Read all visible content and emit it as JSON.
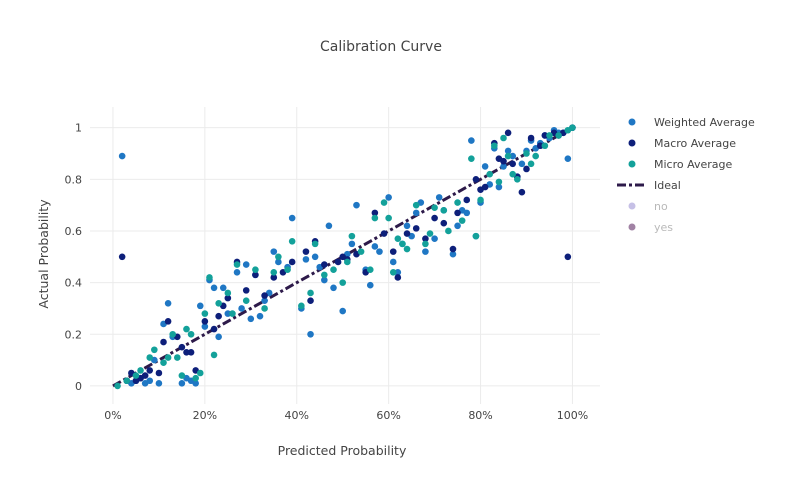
{
  "chart_data": {
    "type": "scatter",
    "title": "Calibration Curve",
    "xlabel": "Predicted Probability",
    "ylabel": "Actual Probability",
    "xlim": [
      -0.05,
      1.06
    ],
    "ylim": [
      -0.07,
      1.08
    ],
    "x_ticks": [
      0,
      0.2,
      0.4,
      0.6,
      0.8,
      1.0
    ],
    "x_tick_labels": [
      "0%",
      "20%",
      "40%",
      "60%",
      "80%",
      "100%"
    ],
    "y_ticks": [
      0,
      0.2,
      0.4,
      0.6,
      0.8,
      1.0
    ],
    "y_tick_labels": [
      "0",
      "0.2",
      "0.4",
      "0.6",
      "0.8",
      "1"
    ],
    "grid": true,
    "legend_position": "right",
    "series": [
      {
        "name": "Weighted Average",
        "mode": "markers",
        "color": "#1f77c4",
        "points": [
          [
            0.02,
            0.89
          ],
          [
            0.04,
            0.01
          ],
          [
            0.05,
            0.02
          ],
          [
            0.06,
            0.03
          ],
          [
            0.07,
            0.01
          ],
          [
            0.08,
            0.02
          ],
          [
            0.09,
            0.1
          ],
          [
            0.1,
            0.01
          ],
          [
            0.11,
            0.24
          ],
          [
            0.12,
            0.32
          ],
          [
            0.13,
            0.19
          ],
          [
            0.15,
            0.01
          ],
          [
            0.16,
            0.03
          ],
          [
            0.17,
            0.02
          ],
          [
            0.18,
            0.01
          ],
          [
            0.19,
            0.31
          ],
          [
            0.2,
            0.23
          ],
          [
            0.21,
            0.41
          ],
          [
            0.22,
            0.38
          ],
          [
            0.23,
            0.19
          ],
          [
            0.24,
            0.38
          ],
          [
            0.25,
            0.28
          ],
          [
            0.27,
            0.44
          ],
          [
            0.28,
            0.3
          ],
          [
            0.29,
            0.47
          ],
          [
            0.3,
            0.26
          ],
          [
            0.31,
            0.43
          ],
          [
            0.32,
            0.27
          ],
          [
            0.33,
            0.33
          ],
          [
            0.34,
            0.36
          ],
          [
            0.35,
            0.52
          ],
          [
            0.36,
            0.48
          ],
          [
            0.38,
            0.46
          ],
          [
            0.39,
            0.65
          ],
          [
            0.41,
            0.3
          ],
          [
            0.42,
            0.49
          ],
          [
            0.43,
            0.2
          ],
          [
            0.44,
            0.5
          ],
          [
            0.45,
            0.46
          ],
          [
            0.46,
            0.41
          ],
          [
            0.47,
            0.62
          ],
          [
            0.48,
            0.38
          ],
          [
            0.5,
            0.29
          ],
          [
            0.51,
            0.51
          ],
          [
            0.52,
            0.55
          ],
          [
            0.53,
            0.7
          ],
          [
            0.55,
            0.45
          ],
          [
            0.56,
            0.39
          ],
          [
            0.57,
            0.54
          ],
          [
            0.58,
            0.52
          ],
          [
            0.6,
            0.73
          ],
          [
            0.61,
            0.48
          ],
          [
            0.62,
            0.44
          ],
          [
            0.63,
            0.55
          ],
          [
            0.64,
            0.62
          ],
          [
            0.65,
            0.58
          ],
          [
            0.66,
            0.67
          ],
          [
            0.67,
            0.71
          ],
          [
            0.68,
            0.52
          ],
          [
            0.7,
            0.57
          ],
          [
            0.71,
            0.73
          ],
          [
            0.72,
            0.68
          ],
          [
            0.74,
            0.51
          ],
          [
            0.75,
            0.62
          ],
          [
            0.76,
            0.68
          ],
          [
            0.77,
            0.67
          ],
          [
            0.78,
            0.95
          ],
          [
            0.79,
            0.58
          ],
          [
            0.8,
            0.71
          ],
          [
            0.81,
            0.85
          ],
          [
            0.82,
            0.78
          ],
          [
            0.83,
            0.92
          ],
          [
            0.84,
            0.77
          ],
          [
            0.85,
            0.85
          ],
          [
            0.86,
            0.91
          ],
          [
            0.87,
            0.89
          ],
          [
            0.88,
            0.81
          ],
          [
            0.89,
            0.86
          ],
          [
            0.9,
            0.91
          ],
          [
            0.91,
            0.95
          ],
          [
            0.92,
            0.92
          ],
          [
            0.93,
            0.94
          ],
          [
            0.94,
            0.97
          ],
          [
            0.95,
            0.96
          ],
          [
            0.96,
            0.99
          ],
          [
            0.97,
            0.98
          ],
          [
            0.98,
            0.98
          ],
          [
            0.99,
            0.88
          ],
          [
            1.0,
            1.0
          ]
        ]
      },
      {
        "name": "Macro Average",
        "mode": "markers",
        "color": "#0d1f7a",
        "points": [
          [
            0.02,
            0.5
          ],
          [
            0.03,
            0.02
          ],
          [
            0.04,
            0.05
          ],
          [
            0.05,
            0.02
          ],
          [
            0.06,
            0.03
          ],
          [
            0.07,
            0.04
          ],
          [
            0.08,
            0.06
          ],
          [
            0.1,
            0.05
          ],
          [
            0.11,
            0.17
          ],
          [
            0.12,
            0.25
          ],
          [
            0.14,
            0.19
          ],
          [
            0.15,
            0.15
          ],
          [
            0.16,
            0.13
          ],
          [
            0.17,
            0.13
          ],
          [
            0.18,
            0.06
          ],
          [
            0.2,
            0.25
          ],
          [
            0.22,
            0.22
          ],
          [
            0.23,
            0.27
          ],
          [
            0.24,
            0.31
          ],
          [
            0.25,
            0.34
          ],
          [
            0.27,
            0.48
          ],
          [
            0.29,
            0.37
          ],
          [
            0.31,
            0.43
          ],
          [
            0.33,
            0.35
          ],
          [
            0.35,
            0.42
          ],
          [
            0.37,
            0.44
          ],
          [
            0.39,
            0.48
          ],
          [
            0.42,
            0.52
          ],
          [
            0.43,
            0.33
          ],
          [
            0.44,
            0.56
          ],
          [
            0.46,
            0.47
          ],
          [
            0.49,
            0.48
          ],
          [
            0.5,
            0.5
          ],
          [
            0.51,
            0.49
          ],
          [
            0.53,
            0.51
          ],
          [
            0.55,
            0.44
          ],
          [
            0.57,
            0.67
          ],
          [
            0.59,
            0.59
          ],
          [
            0.61,
            0.52
          ],
          [
            0.62,
            0.42
          ],
          [
            0.64,
            0.59
          ],
          [
            0.66,
            0.61
          ],
          [
            0.68,
            0.57
          ],
          [
            0.7,
            0.65
          ],
          [
            0.72,
            0.63
          ],
          [
            0.74,
            0.53
          ],
          [
            0.75,
            0.67
          ],
          [
            0.77,
            0.72
          ],
          [
            0.79,
            0.8
          ],
          [
            0.8,
            0.76
          ],
          [
            0.81,
            0.77
          ],
          [
            0.83,
            0.94
          ],
          [
            0.84,
            0.88
          ],
          [
            0.85,
            0.87
          ],
          [
            0.86,
            0.98
          ],
          [
            0.87,
            0.86
          ],
          [
            0.88,
            0.81
          ],
          [
            0.89,
            0.75
          ],
          [
            0.9,
            0.84
          ],
          [
            0.91,
            0.96
          ],
          [
            0.93,
            0.93
          ],
          [
            0.94,
            0.97
          ],
          [
            0.96,
            0.98
          ],
          [
            0.97,
            0.97
          ],
          [
            0.98,
            0.98
          ],
          [
            0.99,
            0.5
          ],
          [
            1.0,
            1.0
          ]
        ]
      },
      {
        "name": "Micro Average",
        "mode": "markers",
        "color": "#13a19a",
        "points": [
          [
            0.01,
            0.0
          ],
          [
            0.03,
            0.02
          ],
          [
            0.05,
            0.04
          ],
          [
            0.06,
            0.06
          ],
          [
            0.08,
            0.11
          ],
          [
            0.09,
            0.14
          ],
          [
            0.11,
            0.09
          ],
          [
            0.12,
            0.11
          ],
          [
            0.13,
            0.2
          ],
          [
            0.14,
            0.11
          ],
          [
            0.15,
            0.04
          ],
          [
            0.16,
            0.22
          ],
          [
            0.17,
            0.2
          ],
          [
            0.18,
            0.03
          ],
          [
            0.19,
            0.05
          ],
          [
            0.2,
            0.28
          ],
          [
            0.21,
            0.42
          ],
          [
            0.22,
            0.12
          ],
          [
            0.23,
            0.32
          ],
          [
            0.25,
            0.36
          ],
          [
            0.26,
            0.28
          ],
          [
            0.27,
            0.47
          ],
          [
            0.29,
            0.33
          ],
          [
            0.31,
            0.45
          ],
          [
            0.33,
            0.3
          ],
          [
            0.35,
            0.44
          ],
          [
            0.36,
            0.5
          ],
          [
            0.38,
            0.45
          ],
          [
            0.39,
            0.56
          ],
          [
            0.41,
            0.31
          ],
          [
            0.43,
            0.36
          ],
          [
            0.44,
            0.55
          ],
          [
            0.46,
            0.43
          ],
          [
            0.48,
            0.45
          ],
          [
            0.5,
            0.4
          ],
          [
            0.51,
            0.48
          ],
          [
            0.52,
            0.58
          ],
          [
            0.54,
            0.52
          ],
          [
            0.56,
            0.45
          ],
          [
            0.57,
            0.65
          ],
          [
            0.59,
            0.71
          ],
          [
            0.6,
            0.65
          ],
          [
            0.61,
            0.44
          ],
          [
            0.62,
            0.57
          ],
          [
            0.63,
            0.55
          ],
          [
            0.64,
            0.53
          ],
          [
            0.66,
            0.7
          ],
          [
            0.68,
            0.55
          ],
          [
            0.69,
            0.59
          ],
          [
            0.7,
            0.69
          ],
          [
            0.72,
            0.68
          ],
          [
            0.73,
            0.6
          ],
          [
            0.75,
            0.71
          ],
          [
            0.76,
            0.64
          ],
          [
            0.78,
            0.88
          ],
          [
            0.79,
            0.58
          ],
          [
            0.8,
            0.72
          ],
          [
            0.82,
            0.82
          ],
          [
            0.83,
            0.93
          ],
          [
            0.84,
            0.79
          ],
          [
            0.85,
            0.96
          ],
          [
            0.86,
            0.89
          ],
          [
            0.87,
            0.82
          ],
          [
            0.88,
            0.8
          ],
          [
            0.9,
            0.9
          ],
          [
            0.91,
            0.86
          ],
          [
            0.92,
            0.89
          ],
          [
            0.94,
            0.93
          ],
          [
            0.95,
            0.97
          ],
          [
            0.97,
            0.97
          ],
          [
            0.99,
            0.99
          ],
          [
            1.0,
            1.0
          ]
        ]
      },
      {
        "name": "Ideal",
        "mode": "line",
        "color": "#2d1a4a",
        "x": [
          0,
          1
        ],
        "y": [
          0,
          1
        ]
      }
    ],
    "legend_extra": [
      {
        "name": "no",
        "color": "#c6c0e6",
        "style": "marker"
      },
      {
        "name": "yes",
        "color": "#a182a4",
        "style": "marker"
      }
    ]
  }
}
